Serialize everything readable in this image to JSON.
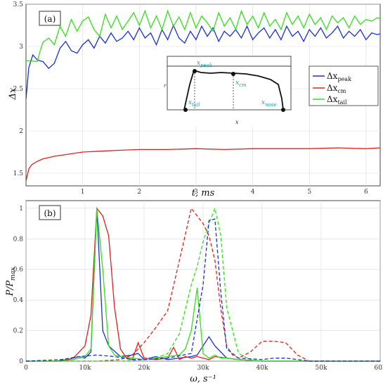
{
  "chart_data": [
    {
      "type": "line",
      "panel_label": "(a)",
      "xlabel": "t, ms",
      "ylabel": "Δx",
      "xlim": [
        0,
        6.25
      ],
      "ylim": [
        1.35,
        3.5
      ],
      "x_ticks": [
        "1",
        "2",
        "3",
        "4",
        "5",
        "6"
      ],
      "y_ticks": [
        "1.5",
        "2",
        "2.5",
        "3",
        "3.5"
      ],
      "legend_position": "right",
      "series": [
        {
          "name": "Δx_peak",
          "legend_main": "Δx",
          "legend_sub": "peak",
          "color": "#1a2fd4",
          "x": [
            0,
            0.05,
            0.12,
            0.2,
            0.3,
            0.4,
            0.5,
            0.6,
            0.7,
            0.8,
            0.9,
            1.0,
            1.1,
            1.2,
            1.3,
            1.4,
            1.5,
            1.6,
            1.7,
            1.8,
            1.9,
            2.0,
            2.1,
            2.2,
            2.3,
            2.4,
            2.5,
            2.6,
            2.7,
            2.8,
            2.9,
            3.0,
            3.1,
            3.2,
            3.3,
            3.4,
            3.5,
            3.6,
            3.7,
            3.8,
            3.9,
            4.0,
            4.1,
            4.2,
            4.3,
            4.4,
            4.5,
            4.6,
            4.7,
            4.8,
            4.9,
            5.0,
            5.1,
            5.2,
            5.3,
            5.4,
            5.5,
            5.6,
            5.7,
            5.8,
            5.9,
            6.0,
            6.1,
            6.2,
            6.25
          ],
          "y": [
            2.38,
            2.75,
            2.9,
            2.84,
            2.82,
            2.74,
            2.8,
            2.98,
            3.06,
            2.95,
            2.92,
            3.02,
            3.08,
            2.98,
            3.12,
            3.04,
            3.16,
            3.06,
            3.1,
            3.18,
            3.08,
            3.22,
            3.1,
            3.16,
            3.02,
            3.2,
            3.08,
            3.25,
            3.1,
            3.04,
            3.18,
            3.08,
            3.24,
            3.12,
            3.22,
            3.06,
            3.18,
            3.12,
            3.2,
            3.1,
            3.24,
            3.08,
            3.16,
            3.22,
            3.1,
            3.2,
            3.08,
            3.24,
            3.12,
            3.18,
            3.06,
            3.2,
            3.12,
            3.22,
            3.1,
            3.16,
            3.24,
            3.1,
            3.18,
            3.12,
            3.2,
            3.08,
            3.16,
            3.14,
            3.15
          ]
        },
        {
          "name": "Δx_cm",
          "legend_main": "Δx",
          "legend_sub": "cm",
          "color": "#e0201c",
          "x": [
            0,
            0.05,
            0.1,
            0.2,
            0.3,
            0.5,
            0.7,
            1.0,
            1.3,
            1.6,
            2.0,
            2.5,
            3.0,
            3.5,
            4.0,
            4.5,
            5.0,
            5.5,
            6.0,
            6.25
          ],
          "y": [
            1.41,
            1.55,
            1.6,
            1.64,
            1.67,
            1.7,
            1.72,
            1.75,
            1.76,
            1.77,
            1.78,
            1.78,
            1.79,
            1.78,
            1.79,
            1.79,
            1.79,
            1.8,
            1.79,
            1.8
          ]
        },
        {
          "name": "Δx_tail",
          "legend_main": "Δx",
          "legend_sub": "tail",
          "color": "#33e01a",
          "x": [
            0,
            0.1,
            0.2,
            0.25,
            0.3,
            0.4,
            0.5,
            0.6,
            0.7,
            0.8,
            0.9,
            1.0,
            1.1,
            1.2,
            1.3,
            1.4,
            1.5,
            1.6,
            1.7,
            1.8,
            1.9,
            2.0,
            2.1,
            2.2,
            2.3,
            2.4,
            2.5,
            2.6,
            2.7,
            2.8,
            2.9,
            3.0,
            3.1,
            3.2,
            3.3,
            3.4,
            3.5,
            3.6,
            3.7,
            3.8,
            3.9,
            4.0,
            4.1,
            4.2,
            4.3,
            4.4,
            4.5,
            4.6,
            4.7,
            4.8,
            4.9,
            5.0,
            5.1,
            5.2,
            5.3,
            5.4,
            5.5,
            5.6,
            5.7,
            5.8,
            5.9,
            6.0,
            6.1,
            6.2,
            6.25
          ],
          "y": [
            2.83,
            2.83,
            2.82,
            2.95,
            3.05,
            3.1,
            3.02,
            3.24,
            3.12,
            3.32,
            3.18,
            3.3,
            3.35,
            3.2,
            3.12,
            3.38,
            3.22,
            3.36,
            3.2,
            3.3,
            3.4,
            3.25,
            3.42,
            3.22,
            3.36,
            3.2,
            3.42,
            3.24,
            3.35,
            3.2,
            3.4,
            3.22,
            3.36,
            3.28,
            3.18,
            3.4,
            3.24,
            3.34,
            3.2,
            3.42,
            3.26,
            3.36,
            3.22,
            3.4,
            3.24,
            3.32,
            3.2,
            3.4,
            3.26,
            3.36,
            3.22,
            3.38,
            3.26,
            3.34,
            3.2,
            3.36,
            3.28,
            3.34,
            3.22,
            3.36,
            3.26,
            3.32,
            3.3,
            3.34,
            3.33
          ]
        }
      ],
      "inset": {
        "ylabel": "r",
        "xlabel": "x",
        "labels": {
          "peak_main": "x",
          "peak_sub": "peak",
          "cm_main": "x",
          "cm_sub": "cm",
          "tail_main": "x",
          "tail_sub": "tail",
          "nose_main": "x",
          "nose_sub": "nose"
        }
      }
    },
    {
      "type": "line",
      "panel_label": "(b)",
      "xlabel": "ω,  s⁻¹",
      "ylabel": "P / P_max",
      "ylabel_main": "P/P",
      "ylabel_sub": "max",
      "xlim": [
        0,
        60000
      ],
      "ylim": [
        0,
        1.05
      ],
      "x_ticks": [
        "0",
        "10k",
        "20k",
        "30k",
        "40k",
        "50k",
        "60k"
      ],
      "y_ticks": [
        "0",
        "0.2",
        "0.4",
        "0.6",
        "0.8",
        "1"
      ],
      "series": [
        {
          "color": "#1a2fd4",
          "dash": false,
          "x": [
            0,
            5000,
            7000,
            9000,
            10000,
            11000,
            12000,
            13000,
            14000,
            16000,
            18000,
            19000,
            20000,
            22000,
            24000,
            26000,
            28000,
            29000,
            30000,
            31000,
            32000,
            33000,
            34000,
            36000,
            40000,
            50000,
            60000
          ],
          "y": [
            0,
            0,
            0.01,
            0.03,
            0.02,
            0.06,
            1.0,
            0.2,
            0.1,
            0.03,
            0.04,
            0.05,
            0.01,
            0.03,
            0.01,
            0.02,
            0.03,
            0.04,
            0.1,
            0.16,
            0.1,
            0.06,
            0.02,
            0.01,
            0.0,
            0,
            0
          ]
        },
        {
          "color": "#e0201c",
          "dash": false,
          "x": [
            0,
            6000,
            8000,
            10000,
            11000,
            12000,
            13000,
            14000,
            15000,
            16000,
            17000,
            18000,
            19000,
            20000,
            22000,
            24000,
            25000,
            26000,
            27000,
            28000,
            29000,
            30000,
            31000,
            32000,
            34000,
            36000,
            40000,
            50000,
            60000
          ],
          "y": [
            0,
            0,
            0.02,
            0.1,
            0.3,
            1.0,
            0.95,
            0.82,
            0.35,
            0.08,
            0.02,
            0.01,
            0.12,
            0.02,
            0.01,
            0.02,
            0.09,
            0.01,
            0.03,
            0.02,
            0.03,
            0.02,
            0.01,
            0.03,
            0.02,
            0.01,
            0,
            0,
            0
          ]
        },
        {
          "color": "#33e01a",
          "dash": false,
          "x": [
            0,
            6000,
            8000,
            10000,
            11000,
            12000,
            13000,
            14000,
            15000,
            16000,
            18000,
            20000,
            22000,
            24000,
            26000,
            27000,
            28000,
            29000,
            30000,
            31000,
            32000,
            33000,
            34000,
            36000,
            40000,
            50000,
            60000
          ],
          "y": [
            0,
            0,
            0.01,
            0.03,
            0.08,
            1.0,
            0.6,
            0.1,
            0.04,
            0.03,
            0.02,
            0.01,
            0.02,
            0.03,
            0.04,
            0.08,
            0.2,
            0.48,
            0.05,
            0.02,
            0.04,
            0.02,
            0.02,
            0.01,
            0,
            0,
            0
          ]
        },
        {
          "color": "#e0201c",
          "dash": true,
          "x": [
            0,
            8000,
            12000,
            16000,
            18000,
            20000,
            22000,
            24000,
            26000,
            28000,
            30000,
            31000,
            32000,
            33000,
            34000,
            35000,
            36000,
            38000,
            40000,
            42000,
            44000,
            46000,
            48000,
            50000,
            60000
          ],
          "y": [
            0,
            0,
            0,
            0.01,
            0.04,
            0.12,
            0.22,
            0.33,
            0.66,
            1.0,
            0.9,
            0.82,
            0.66,
            0.34,
            0.1,
            0.04,
            0.02,
            0.06,
            0.13,
            0.13,
            0.12,
            0.04,
            0.0,
            0,
            0
          ]
        },
        {
          "color": "#33e01a",
          "dash": true,
          "x": [
            0,
            8000,
            12000,
            16000,
            20000,
            22000,
            24000,
            26000,
            28000,
            29000,
            30000,
            31000,
            32000,
            33000,
            34000,
            36000,
            38000,
            40000,
            60000
          ],
          "y": [
            0,
            0,
            0,
            0,
            0.01,
            0.02,
            0.05,
            0.18,
            0.5,
            0.62,
            0.78,
            0.9,
            1.0,
            0.82,
            0.35,
            0.05,
            0.01,
            0,
            0
          ]
        },
        {
          "color": "#1a2fd4",
          "dash": true,
          "x": [
            0,
            6000,
            9000,
            12000,
            15000,
            18000,
            20000,
            24000,
            28000,
            30000,
            31000,
            32000,
            33000,
            34000,
            36000,
            40000,
            42000,
            44000,
            46000,
            48000,
            50000,
            60000
          ],
          "y": [
            0,
            0.01,
            0.03,
            0.04,
            0.03,
            0.01,
            0.01,
            0.02,
            0.05,
            0.5,
            0.92,
            0.93,
            0.45,
            0.08,
            0.02,
            0.01,
            0.02,
            0.02,
            0.01,
            0.0,
            0,
            0
          ]
        }
      ]
    }
  ]
}
